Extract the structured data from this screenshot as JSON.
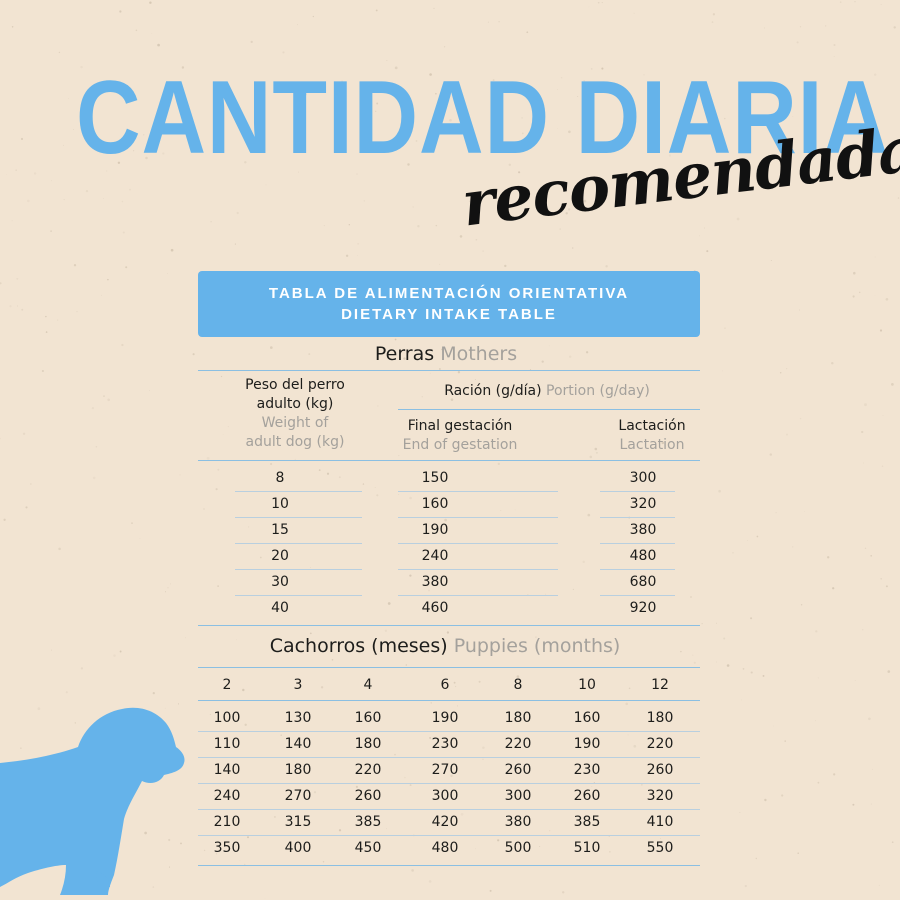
{
  "title": "CANTIDAD DIARIA",
  "subtitle": "recomendada",
  "banner": {
    "line1": "TABLA DE ALIMENTACIÓN ORIENTATIVA",
    "line2": "DIETARY INTAKE TABLE"
  },
  "mothers": {
    "title_es": "Perras",
    "title_en": "Mothers",
    "weight_header_es_1": "Peso del perro",
    "weight_header_es_2": "adulto (kg)",
    "weight_header_en_1": "Weight of",
    "weight_header_en_2": "adult dog (kg)",
    "portion_header_es": "Ración (g/día)",
    "portion_header_en": "Portion (g/day)",
    "gestation_es": "Final gestación",
    "gestation_en": "End of gestation",
    "lactation_es": "Lactación",
    "lactation_en": "Lactation",
    "rows": [
      [
        "8",
        "150",
        "300"
      ],
      [
        "10",
        "160",
        "320"
      ],
      [
        "15",
        "190",
        "380"
      ],
      [
        "20",
        "240",
        "480"
      ],
      [
        "30",
        "380",
        "680"
      ],
      [
        "40",
        "460",
        "920"
      ]
    ]
  },
  "puppies": {
    "title_es": "Cachorros (meses)",
    "title_en": "Puppies (months)",
    "months": [
      "2",
      "3",
      "4",
      "6",
      "8",
      "10",
      "12"
    ],
    "rows": [
      [
        "100",
        "130",
        "160",
        "190",
        "180",
        "160",
        "180"
      ],
      [
        "110",
        "140",
        "180",
        "230",
        "220",
        "190",
        "220"
      ],
      [
        "140",
        "180",
        "220",
        "270",
        "260",
        "230",
        "260"
      ],
      [
        "240",
        "270",
        "260",
        "300",
        "300",
        "260",
        "320"
      ],
      [
        "210",
        "315",
        "385",
        "420",
        "380",
        "385",
        "410"
      ],
      [
        "350",
        "400",
        "450",
        "480",
        "500",
        "510",
        "550"
      ]
    ]
  },
  "colors": {
    "accent": "#65b3ea",
    "background": "#f2e4d2",
    "text": "#1d1d1b",
    "muted": "#a4a19c"
  },
  "icons": {
    "dog": "dog-silhouette-icon"
  }
}
